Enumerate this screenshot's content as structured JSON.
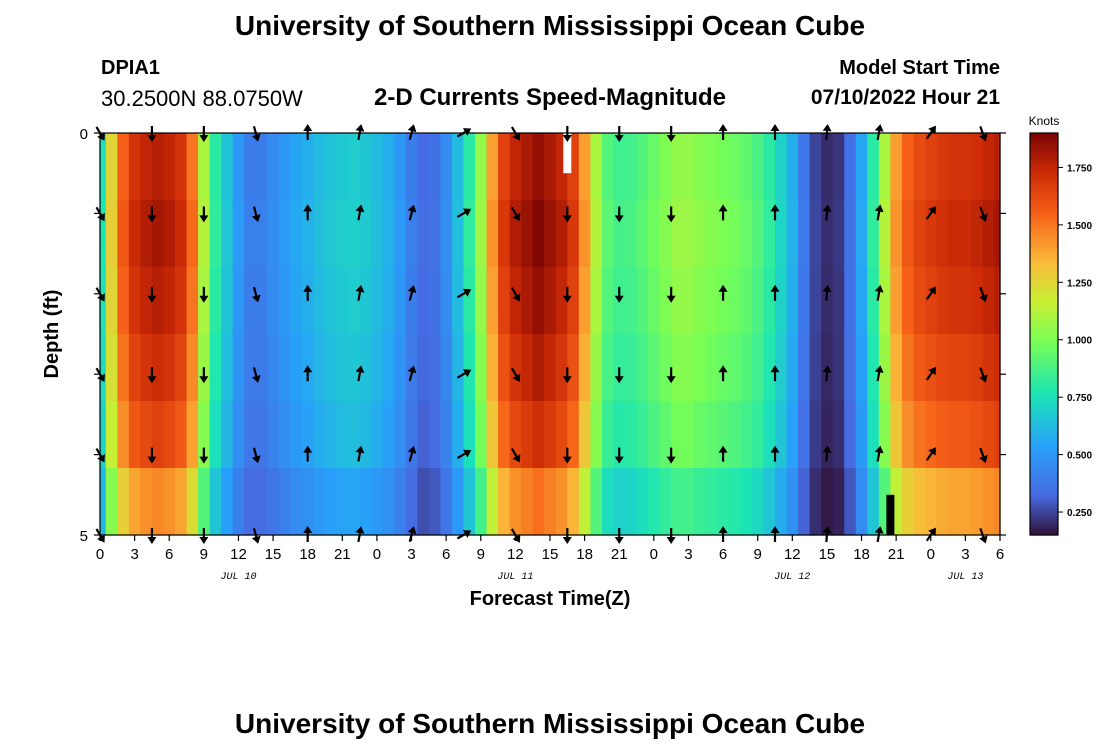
{
  "header": {
    "title": "University of Southern Mississippi Ocean Cube",
    "station": "DPIA1",
    "coords": "30.2500N  88.0750W",
    "subtitle": "2-D Currents Speed-Magnitude",
    "model_start_label": "Model Start Time",
    "model_start_value": "07/10/2022 Hour 21"
  },
  "footer": {
    "title": "University of Southern Mississippi Ocean Cube"
  },
  "chart_data": {
    "type": "heatmap",
    "title": "2-D Currents Speed-Magnitude",
    "xlabel": "Forecast Time(Z)",
    "ylabel": "Depth (ft)",
    "colorbar_label": "Knots",
    "x_tick_labels": [
      "0",
      "3",
      "6",
      "9",
      "12",
      "15",
      "18",
      "21",
      "0",
      "3",
      "6",
      "9",
      "12",
      "15",
      "18",
      "21",
      "0",
      "3",
      "6",
      "9",
      "12",
      "15",
      "18",
      "21",
      "0",
      "3",
      "6"
    ],
    "x_range_hours": [
      0,
      78
    ],
    "date_labels": [
      {
        "label": "JUL 10",
        "hour": 12
      },
      {
        "label": "JUL 11",
        "hour": 36
      },
      {
        "label": "JUL 12",
        "hour": 60
      },
      {
        "label": "JUL 13",
        "hour": 75
      }
    ],
    "y_tick_labels": [
      "0",
      "5"
    ],
    "ylim": [
      0,
      5
    ],
    "depth_levels": [
      0,
      1,
      2,
      3,
      4,
      5
    ],
    "colorbar_ticks": [
      0.25,
      0.5,
      0.75,
      1.0,
      1.25,
      1.5,
      1.75
    ],
    "colorbar_tick_labels": [
      "0.250",
      "0.500",
      "0.750",
      "1.000",
      "1.250",
      "1.500",
      "1.750"
    ],
    "colorbar_range": [
      0.15,
      1.9
    ],
    "speed_profile": {
      "hours": [
        0,
        1,
        2,
        3,
        4,
        5,
        6,
        7,
        8,
        9,
        10,
        11,
        12,
        13,
        14,
        15,
        16,
        17,
        18,
        19,
        20,
        21,
        22,
        23,
        24,
        25,
        26,
        27,
        28,
        29,
        30,
        31,
        32,
        33,
        34,
        35,
        36,
        37,
        38,
        39,
        40,
        41,
        42,
        43,
        44,
        45,
        46,
        47,
        48,
        49,
        50,
        51,
        52,
        53,
        54,
        55,
        56,
        57,
        58,
        59,
        60,
        61,
        62,
        63,
        64,
        65,
        66,
        67,
        68,
        69,
        70,
        71,
        72,
        73,
        74,
        75,
        76,
        77,
        78
      ],
      "knots": [
        0.75,
        1.25,
        1.55,
        1.7,
        1.75,
        1.78,
        1.75,
        1.7,
        1.5,
        1.1,
        0.8,
        0.65,
        0.5,
        0.4,
        0.4,
        0.45,
        0.5,
        0.55,
        0.58,
        0.62,
        0.65,
        0.67,
        0.68,
        0.66,
        0.62,
        0.58,
        0.5,
        0.4,
        0.33,
        0.35,
        0.45,
        0.62,
        0.8,
        1.05,
        1.4,
        1.65,
        1.75,
        1.8,
        1.85,
        1.8,
        1.75,
        1.65,
        1.4,
        1.1,
        0.9,
        0.85,
        0.86,
        0.9,
        0.95,
        1.0,
        1.05,
        1.05,
        1.02,
        1.0,
        0.98,
        0.96,
        0.93,
        0.88,
        0.8,
        0.7,
        0.58,
        0.38,
        0.25,
        0.2,
        0.22,
        0.35,
        0.55,
        0.8,
        1.1,
        1.4,
        1.55,
        1.62,
        1.65,
        1.68,
        1.7,
        1.7,
        1.72,
        1.75,
        1.78
      ]
    },
    "depth_factor": [
      1.0,
      1.02,
      1.0,
      0.97,
      0.93,
      0.82
    ],
    "arrows": [
      {
        "hour": 0,
        "dir": 150
      },
      {
        "hour": 4.5,
        "dir": 180
      },
      {
        "hour": 9,
        "dir": 180
      },
      {
        "hour": 13.5,
        "dir": 165
      },
      {
        "hour": 18,
        "dir": 0
      },
      {
        "hour": 22.5,
        "dir": 10
      },
      {
        "hour": 27,
        "dir": 15
      },
      {
        "hour": 31.5,
        "dir": 60
      },
      {
        "hour": 36,
        "dir": 150
      },
      {
        "hour": 40.5,
        "dir": 180
      },
      {
        "hour": 45,
        "dir": 180
      },
      {
        "hour": 49.5,
        "dir": 180
      },
      {
        "hour": 54,
        "dir": 0
      },
      {
        "hour": 58.5,
        "dir": 0
      },
      {
        "hour": 63,
        "dir": 5
      },
      {
        "hour": 67.5,
        "dir": 10
      },
      {
        "hour": 72,
        "dir": 35
      },
      {
        "hour": 76.5,
        "dir": 160
      }
    ],
    "missing_marks": [
      {
        "hour": 40.5,
        "depth_from": 0,
        "depth_to": 0.5,
        "color": "#ffffff"
      },
      {
        "hour": 68.5,
        "depth_from": 4.5,
        "depth_to": 5,
        "color": "#000000"
      }
    ]
  }
}
